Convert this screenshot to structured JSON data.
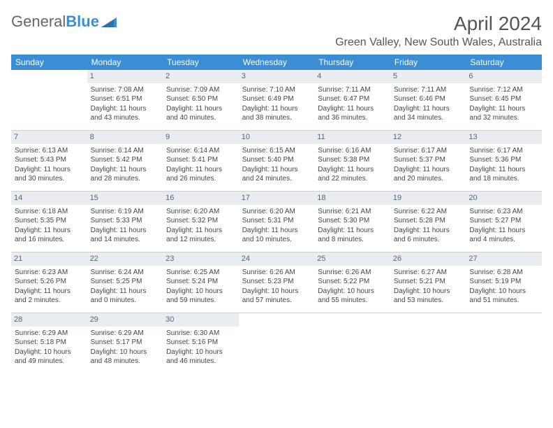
{
  "brand": {
    "text1": "General",
    "text2": "Blue"
  },
  "title": "April 2024",
  "location": "Green Valley, New South Wales, Australia",
  "colors": {
    "header_bg": "#3b8dd4",
    "header_text": "#ffffff",
    "daynum_bg": "#e9edf1",
    "daynum_text": "#556575",
    "body_text": "#444444",
    "separator": "#d0d0d0",
    "brand_gray": "#666666",
    "brand_blue": "#3b8dd4"
  },
  "fonts": {
    "title_pt": 28,
    "location_pt": 16,
    "weekday_pt": 12,
    "day_pt": 10
  },
  "weekdays": [
    "Sunday",
    "Monday",
    "Tuesday",
    "Wednesday",
    "Thursday",
    "Friday",
    "Saturday"
  ],
  "first_day_index": 1,
  "days": [
    {
      "n": "1",
      "sunrise": "Sunrise: 7:08 AM",
      "sunset": "Sunset: 6:51 PM",
      "day1": "Daylight: 11 hours",
      "day2": "and 43 minutes."
    },
    {
      "n": "2",
      "sunrise": "Sunrise: 7:09 AM",
      "sunset": "Sunset: 6:50 PM",
      "day1": "Daylight: 11 hours",
      "day2": "and 40 minutes."
    },
    {
      "n": "3",
      "sunrise": "Sunrise: 7:10 AM",
      "sunset": "Sunset: 6:49 PM",
      "day1": "Daylight: 11 hours",
      "day2": "and 38 minutes."
    },
    {
      "n": "4",
      "sunrise": "Sunrise: 7:11 AM",
      "sunset": "Sunset: 6:47 PM",
      "day1": "Daylight: 11 hours",
      "day2": "and 36 minutes."
    },
    {
      "n": "5",
      "sunrise": "Sunrise: 7:11 AM",
      "sunset": "Sunset: 6:46 PM",
      "day1": "Daylight: 11 hours",
      "day2": "and 34 minutes."
    },
    {
      "n": "6",
      "sunrise": "Sunrise: 7:12 AM",
      "sunset": "Sunset: 6:45 PM",
      "day1": "Daylight: 11 hours",
      "day2": "and 32 minutes."
    },
    {
      "n": "7",
      "sunrise": "Sunrise: 6:13 AM",
      "sunset": "Sunset: 5:43 PM",
      "day1": "Daylight: 11 hours",
      "day2": "and 30 minutes."
    },
    {
      "n": "8",
      "sunrise": "Sunrise: 6:14 AM",
      "sunset": "Sunset: 5:42 PM",
      "day1": "Daylight: 11 hours",
      "day2": "and 28 minutes."
    },
    {
      "n": "9",
      "sunrise": "Sunrise: 6:14 AM",
      "sunset": "Sunset: 5:41 PM",
      "day1": "Daylight: 11 hours",
      "day2": "and 26 minutes."
    },
    {
      "n": "10",
      "sunrise": "Sunrise: 6:15 AM",
      "sunset": "Sunset: 5:40 PM",
      "day1": "Daylight: 11 hours",
      "day2": "and 24 minutes."
    },
    {
      "n": "11",
      "sunrise": "Sunrise: 6:16 AM",
      "sunset": "Sunset: 5:38 PM",
      "day1": "Daylight: 11 hours",
      "day2": "and 22 minutes."
    },
    {
      "n": "12",
      "sunrise": "Sunrise: 6:17 AM",
      "sunset": "Sunset: 5:37 PM",
      "day1": "Daylight: 11 hours",
      "day2": "and 20 minutes."
    },
    {
      "n": "13",
      "sunrise": "Sunrise: 6:17 AM",
      "sunset": "Sunset: 5:36 PM",
      "day1": "Daylight: 11 hours",
      "day2": "and 18 minutes."
    },
    {
      "n": "14",
      "sunrise": "Sunrise: 6:18 AM",
      "sunset": "Sunset: 5:35 PM",
      "day1": "Daylight: 11 hours",
      "day2": "and 16 minutes."
    },
    {
      "n": "15",
      "sunrise": "Sunrise: 6:19 AM",
      "sunset": "Sunset: 5:33 PM",
      "day1": "Daylight: 11 hours",
      "day2": "and 14 minutes."
    },
    {
      "n": "16",
      "sunrise": "Sunrise: 6:20 AM",
      "sunset": "Sunset: 5:32 PM",
      "day1": "Daylight: 11 hours",
      "day2": "and 12 minutes."
    },
    {
      "n": "17",
      "sunrise": "Sunrise: 6:20 AM",
      "sunset": "Sunset: 5:31 PM",
      "day1": "Daylight: 11 hours",
      "day2": "and 10 minutes."
    },
    {
      "n": "18",
      "sunrise": "Sunrise: 6:21 AM",
      "sunset": "Sunset: 5:30 PM",
      "day1": "Daylight: 11 hours",
      "day2": "and 8 minutes."
    },
    {
      "n": "19",
      "sunrise": "Sunrise: 6:22 AM",
      "sunset": "Sunset: 5:28 PM",
      "day1": "Daylight: 11 hours",
      "day2": "and 6 minutes."
    },
    {
      "n": "20",
      "sunrise": "Sunrise: 6:23 AM",
      "sunset": "Sunset: 5:27 PM",
      "day1": "Daylight: 11 hours",
      "day2": "and 4 minutes."
    },
    {
      "n": "21",
      "sunrise": "Sunrise: 6:23 AM",
      "sunset": "Sunset: 5:26 PM",
      "day1": "Daylight: 11 hours",
      "day2": "and 2 minutes."
    },
    {
      "n": "22",
      "sunrise": "Sunrise: 6:24 AM",
      "sunset": "Sunset: 5:25 PM",
      "day1": "Daylight: 11 hours",
      "day2": "and 0 minutes."
    },
    {
      "n": "23",
      "sunrise": "Sunrise: 6:25 AM",
      "sunset": "Sunset: 5:24 PM",
      "day1": "Daylight: 10 hours",
      "day2": "and 59 minutes."
    },
    {
      "n": "24",
      "sunrise": "Sunrise: 6:26 AM",
      "sunset": "Sunset: 5:23 PM",
      "day1": "Daylight: 10 hours",
      "day2": "and 57 minutes."
    },
    {
      "n": "25",
      "sunrise": "Sunrise: 6:26 AM",
      "sunset": "Sunset: 5:22 PM",
      "day1": "Daylight: 10 hours",
      "day2": "and 55 minutes."
    },
    {
      "n": "26",
      "sunrise": "Sunrise: 6:27 AM",
      "sunset": "Sunset: 5:21 PM",
      "day1": "Daylight: 10 hours",
      "day2": "and 53 minutes."
    },
    {
      "n": "27",
      "sunrise": "Sunrise: 6:28 AM",
      "sunset": "Sunset: 5:19 PM",
      "day1": "Daylight: 10 hours",
      "day2": "and 51 minutes."
    },
    {
      "n": "28",
      "sunrise": "Sunrise: 6:29 AM",
      "sunset": "Sunset: 5:18 PM",
      "day1": "Daylight: 10 hours",
      "day2": "and 49 minutes."
    },
    {
      "n": "29",
      "sunrise": "Sunrise: 6:29 AM",
      "sunset": "Sunset: 5:17 PM",
      "day1": "Daylight: 10 hours",
      "day2": "and 48 minutes."
    },
    {
      "n": "30",
      "sunrise": "Sunrise: 6:30 AM",
      "sunset": "Sunset: 5:16 PM",
      "day1": "Daylight: 10 hours",
      "day2": "and 46 minutes."
    }
  ]
}
